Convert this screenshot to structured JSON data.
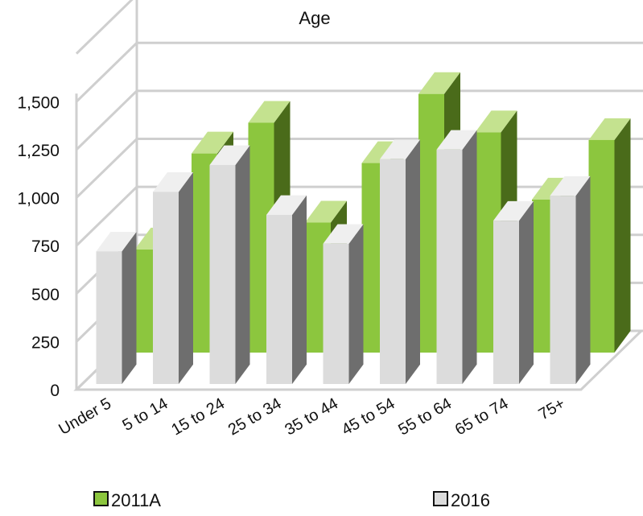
{
  "chart_data": {
    "type": "bar",
    "title": "Age",
    "categories": [
      "Under 5",
      "5 to 14",
      "15 to 24",
      "25 to 34",
      "35 to 44",
      "45 to 54",
      "55 to 64",
      "65 to 74",
      "75+"
    ],
    "series": [
      {
        "name": "2011A",
        "values": [
          730,
          1230,
          1390,
          870,
          1180,
          1540,
          1340,
          990,
          1300
        ],
        "color": "#8cc63e"
      },
      {
        "name": "2016",
        "values": [
          720,
          1030,
          1170,
          910,
          760,
          1200,
          1250,
          880,
          1010
        ],
        "color": "#dcdcdc"
      }
    ],
    "yticks": [
      "0",
      "250",
      "500",
      "750",
      "1,000",
      "1,250",
      "1,500"
    ],
    "ylim": [
      0,
      1750
    ],
    "grid": true,
    "legend_position": "bottom"
  }
}
